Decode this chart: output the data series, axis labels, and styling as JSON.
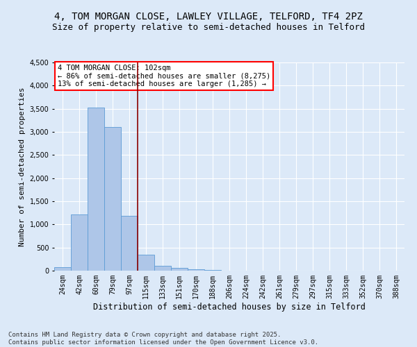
{
  "title": "4, TOM MORGAN CLOSE, LAWLEY VILLAGE, TELFORD, TF4 2PZ",
  "subtitle": "Size of property relative to semi-detached houses in Telford",
  "xlabel": "Distribution of semi-detached houses by size in Telford",
  "ylabel": "Number of semi-detached properties",
  "bar_labels": [
    "24sqm",
    "42sqm",
    "60sqm",
    "79sqm",
    "97sqm",
    "115sqm",
    "133sqm",
    "151sqm",
    "170sqm",
    "188sqm",
    "206sqm",
    "224sqm",
    "242sqm",
    "261sqm",
    "279sqm",
    "297sqm",
    "315sqm",
    "333sqm",
    "352sqm",
    "370sqm",
    "388sqm"
  ],
  "bar_values": [
    75,
    1220,
    3530,
    3110,
    1180,
    340,
    100,
    55,
    35,
    20,
    5,
    0,
    0,
    0,
    0,
    0,
    0,
    0,
    0,
    0,
    0
  ],
  "bar_color": "#aec6e8",
  "bar_edge_color": "#5b9bd5",
  "vline_x_index": 4,
  "vline_color": "#8b0000",
  "annotation_title": "4 TOM MORGAN CLOSE: 102sqm",
  "annotation_line1": "← 86% of semi-detached houses are smaller (8,275)",
  "annotation_line2": "13% of semi-detached houses are larger (1,285) →",
  "annotation_box_color": "red",
  "ylim": [
    0,
    4500
  ],
  "background_color": "#dce9f8",
  "plot_bg_color": "#dce9f8",
  "grid_color": "white",
  "footer_line1": "Contains HM Land Registry data © Crown copyright and database right 2025.",
  "footer_line2": "Contains public sector information licensed under the Open Government Licence v3.0.",
  "title_fontsize": 10,
  "subtitle_fontsize": 9,
  "xlabel_fontsize": 8.5,
  "ylabel_fontsize": 8,
  "tick_fontsize": 7,
  "footer_fontsize": 6.5,
  "annotation_fontsize": 7.5
}
